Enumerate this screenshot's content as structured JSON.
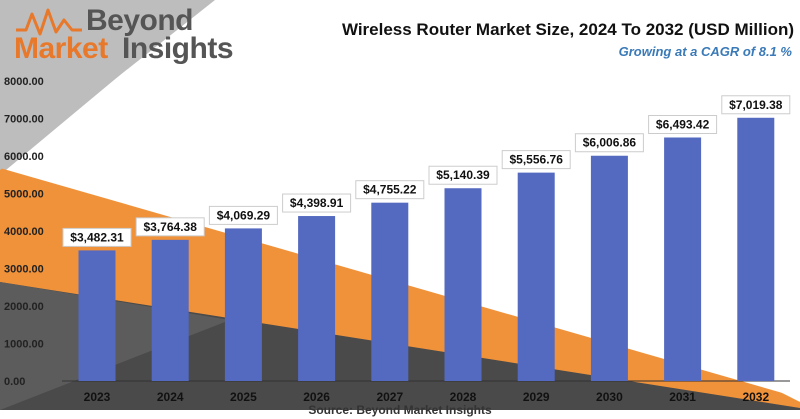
{
  "brand": {
    "line1": "Beyond",
    "line2a": "Market",
    "line2b": "Insights",
    "logo_icon": "wave-logo-icon"
  },
  "colors": {
    "bar": "#5469c0",
    "bar_dark": "#3a4fa0",
    "orange": "#f0923a",
    "dark_band": "#4a4a4a",
    "logo_orange": "#e8782a",
    "subtitle_blue": "#3a7ab8"
  },
  "chart_data": {
    "type": "bar",
    "title": "Wireless Router Market Size, 2024 To 2032 (USD Million)",
    "subtitle": "Growing at a CAGR of 8.1 %",
    "source": "Source: Beyond Market Insights",
    "categories": [
      "2023",
      "2024",
      "2025",
      "2026",
      "2027",
      "2028",
      "2029",
      "2030",
      "2031",
      "2032"
    ],
    "values": [
      3482.31,
      3764.38,
      4069.29,
      4398.91,
      4755.22,
      5140.39,
      5556.76,
      6006.86,
      6493.42,
      7019.38
    ],
    "data_labels": [
      "$3,482.31",
      "$3,764.38",
      "$4,069.29",
      "$4,398.91",
      "$4,755.22",
      "$5,140.39",
      "$5,556.76",
      "$6,006.86",
      "$6,493.42",
      "$7,019.38"
    ],
    "y_ticks": [
      "0.00",
      "1000.00",
      "2000.00",
      "3000.00",
      "4000.00",
      "5000.00",
      "6000.00",
      "7000.00",
      "8000.00"
    ],
    "ylim": [
      0,
      8000
    ],
    "grid": false,
    "legend": "none"
  }
}
